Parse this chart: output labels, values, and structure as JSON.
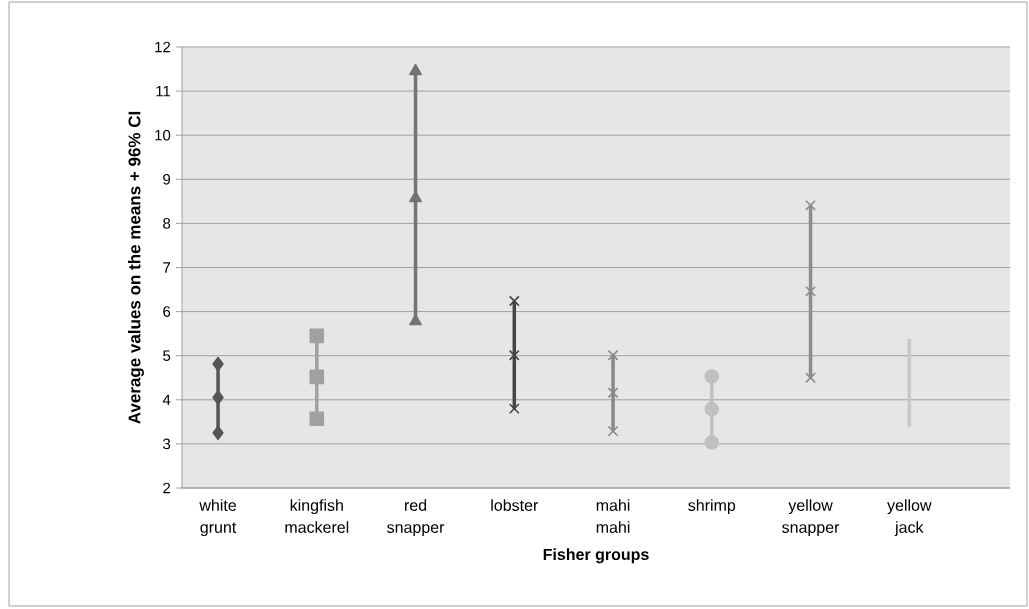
{
  "chart_data": {
    "type": "line",
    "xlabel": "Fisher groups",
    "ylabel": "Average values on the means  + 96% CI",
    "categories": [
      "white grunt",
      "kingfish mackerel",
      "red snapper",
      "lobster",
      "mahi mahi",
      "shrimp",
      "yellow snapper",
      "yellow jack"
    ],
    "series": [
      {
        "x": [
          "white grunt",
          "white grunt",
          "white grunt"
        ],
        "values": [
          3.25,
          4.05,
          4.81
        ],
        "color": "#555555",
        "marker": "diamond"
      },
      {
        "x": [
          "kingfish mackerel",
          "kingfish mackerel",
          "kingfish mackerel"
        ],
        "values": [
          3.57,
          4.52,
          5.45
        ],
        "color": "#a0a0a0",
        "marker": "square"
      },
      {
        "x": [
          "red snapper",
          "red snapper",
          "red snapper"
        ],
        "values": [
          5.78,
          8.57,
          11.45
        ],
        "color": "#737373",
        "marker": "triangle"
      },
      {
        "x": [
          "lobster",
          "lobster",
          "lobster"
        ],
        "values": [
          3.8,
          5.01,
          6.24
        ],
        "color": "#444444",
        "marker": "cross"
      },
      {
        "x": [
          "mahi mahi",
          "mahi mahi",
          "mahi mahi"
        ],
        "values": [
          3.29,
          4.16,
          5.01
        ],
        "color": "#888888",
        "marker": "cross"
      },
      {
        "x": [
          "shrimp",
          "shrimp",
          "shrimp"
        ],
        "values": [
          3.03,
          3.79,
          4.53
        ],
        "color": "#c0c0c0",
        "marker": "circle"
      },
      {
        "x": [
          "yellow snapper",
          "yellow snapper",
          "yellow snapper"
        ],
        "values": [
          4.5,
          6.46,
          8.41
        ],
        "color": "#8c8c8c",
        "marker": "cross"
      },
      {
        "x": [
          "yellow jack",
          "yellow jack",
          "yellow jack"
        ],
        "values": [
          3.39,
          4.38,
          5.38
        ],
        "color": "#c8c8c8",
        "marker": "none"
      }
    ],
    "ylim": [
      2,
      12
    ],
    "yticks": [
      2,
      3,
      4,
      5,
      6,
      7,
      8,
      9,
      10,
      11,
      12
    ],
    "grid": "y"
  }
}
